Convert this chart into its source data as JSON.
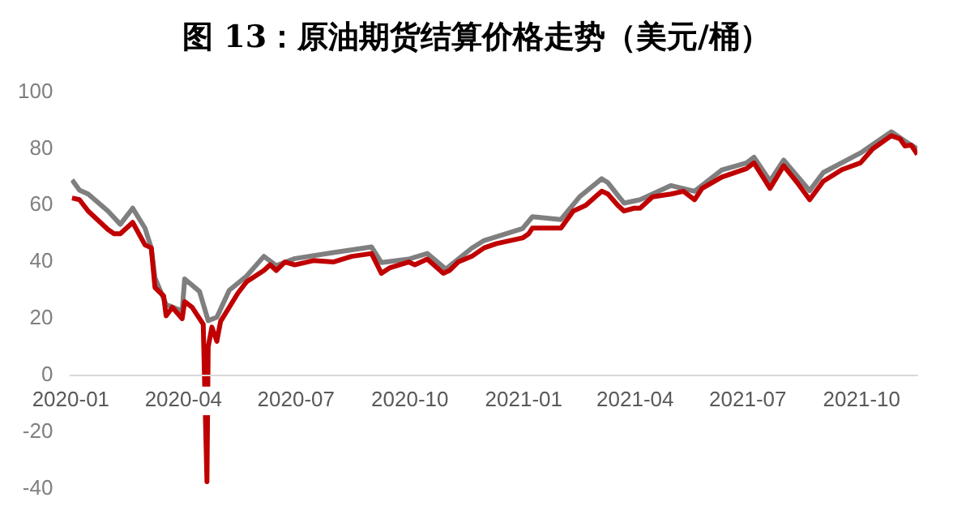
{
  "chart_data": {
    "type": "line",
    "title": "图 13：原油期货结算价格走势（美元/桶）",
    "ylim": [
      -40,
      100
    ],
    "yticks": [
      -40,
      -20,
      0,
      20,
      40,
      60,
      80,
      100
    ],
    "xlim": [
      "2020-01-01",
      "2021-11-15"
    ],
    "xticks": [
      "2020-01",
      "2020-04",
      "2020-07",
      "2020-10",
      "2021-01",
      "2021-04",
      "2021-07",
      "2021-10"
    ],
    "grid": false,
    "legend": false,
    "marker": "none",
    "line_style": "solid",
    "series": [
      {
        "color": "#c00000",
        "x": [
          "2020-01-02",
          "2020-01-08",
          "2020-01-15",
          "2020-01-31",
          "2020-02-05",
          "2020-02-10",
          "2020-02-20",
          "2020-03-01",
          "2020-03-06",
          "2020-03-09",
          "2020-03-16",
          "2020-03-18",
          "2020-03-23",
          "2020-03-31",
          "2020-04-02",
          "2020-04-08",
          "2020-04-14",
          "2020-04-17",
          "2020-04-20",
          "2020-04-21",
          "2020-04-24",
          "2020-04-28",
          "2020-05-01",
          "2020-05-08",
          "2020-05-15",
          "2020-05-22",
          "2020-05-29",
          "2020-06-05",
          "2020-06-10",
          "2020-06-15",
          "2020-06-22",
          "2020-06-30",
          "2020-07-15",
          "2020-07-31",
          "2020-08-15",
          "2020-08-31",
          "2020-09-08",
          "2020-09-15",
          "2020-09-30",
          "2020-10-05",
          "2020-10-15",
          "2020-10-28",
          "2020-11-02",
          "2020-11-09",
          "2020-11-20",
          "2020-11-30",
          "2020-12-10",
          "2020-12-31",
          "2021-01-05",
          "2021-01-08",
          "2021-01-15",
          "2021-01-31",
          "2021-02-10",
          "2021-02-20",
          "2021-03-05",
          "2021-03-10",
          "2021-03-18",
          "2021-03-23",
          "2021-03-31",
          "2021-04-05",
          "2021-04-15",
          "2021-04-30",
          "2021-05-10",
          "2021-05-19",
          "2021-05-25",
          "2021-06-10",
          "2021-06-30",
          "2021-07-06",
          "2021-07-19",
          "2021-07-30",
          "2021-08-10",
          "2021-08-20",
          "2021-08-31",
          "2021-09-15",
          "2021-09-30",
          "2021-10-10",
          "2021-10-25",
          "2021-11-01",
          "2021-11-05",
          "2021-11-10",
          "2021-11-15"
        ],
        "values": [
          62.6,
          62,
          58,
          51.5,
          50,
          50,
          54,
          46,
          45,
          31,
          28,
          21,
          24,
          20,
          26,
          24,
          20,
          18,
          -37.6,
          10,
          17,
          12,
          19,
          24,
          29,
          33,
          35,
          37,
          39,
          37,
          40,
          39,
          40.5,
          40,
          42,
          43,
          36,
          38,
          40,
          39,
          41,
          36,
          37,
          40,
          42,
          45,
          46.5,
          48.5,
          50,
          52,
          52,
          52,
          58,
          60,
          65,
          64,
          60,
          58,
          59,
          59,
          63,
          64,
          65,
          62,
          66,
          70,
          73,
          75,
          66,
          74,
          68,
          62,
          68.5,
          72.6,
          75,
          80,
          84.6,
          83.5,
          81,
          81.3,
          78
        ]
      },
      {
        "color": "#7f7f7f",
        "x": [
          "2020-01-02",
          "2020-01-08",
          "2020-01-15",
          "2020-01-31",
          "2020-02-10",
          "2020-02-20",
          "2020-03-01",
          "2020-03-06",
          "2020-03-09",
          "2020-03-18",
          "2020-03-31",
          "2020-04-02",
          "2020-04-14",
          "2020-04-21",
          "2020-04-28",
          "2020-05-08",
          "2020-05-22",
          "2020-06-05",
          "2020-06-15",
          "2020-06-30",
          "2020-07-31",
          "2020-08-31",
          "2020-09-08",
          "2020-09-30",
          "2020-10-15",
          "2020-10-30",
          "2020-11-20",
          "2020-11-30",
          "2020-12-31",
          "2021-01-08",
          "2021-01-31",
          "2021-02-15",
          "2021-03-05",
          "2021-03-10",
          "2021-03-23",
          "2021-04-05",
          "2021-04-30",
          "2021-05-19",
          "2021-06-10",
          "2021-06-30",
          "2021-07-06",
          "2021-07-19",
          "2021-07-30",
          "2021-08-20",
          "2021-08-31",
          "2021-09-30",
          "2021-10-25",
          "2021-11-05",
          "2021-11-15"
        ],
        "values": [
          69,
          65.4,
          64,
          58,
          53.3,
          59,
          51.9,
          45,
          34.4,
          25,
          22.7,
          34,
          29.6,
          19.3,
          20.5,
          30,
          35,
          42,
          38.7,
          41.2,
          43.3,
          45.3,
          39.8,
          41,
          43,
          37.5,
          44.9,
          47.6,
          51.8,
          56,
          55,
          63,
          69.4,
          68,
          60.8,
          62,
          67,
          65,
          72.5,
          75,
          77,
          68.6,
          76,
          65.2,
          71.6,
          78.5,
          86,
          82.7,
          80
        ]
      }
    ]
  }
}
